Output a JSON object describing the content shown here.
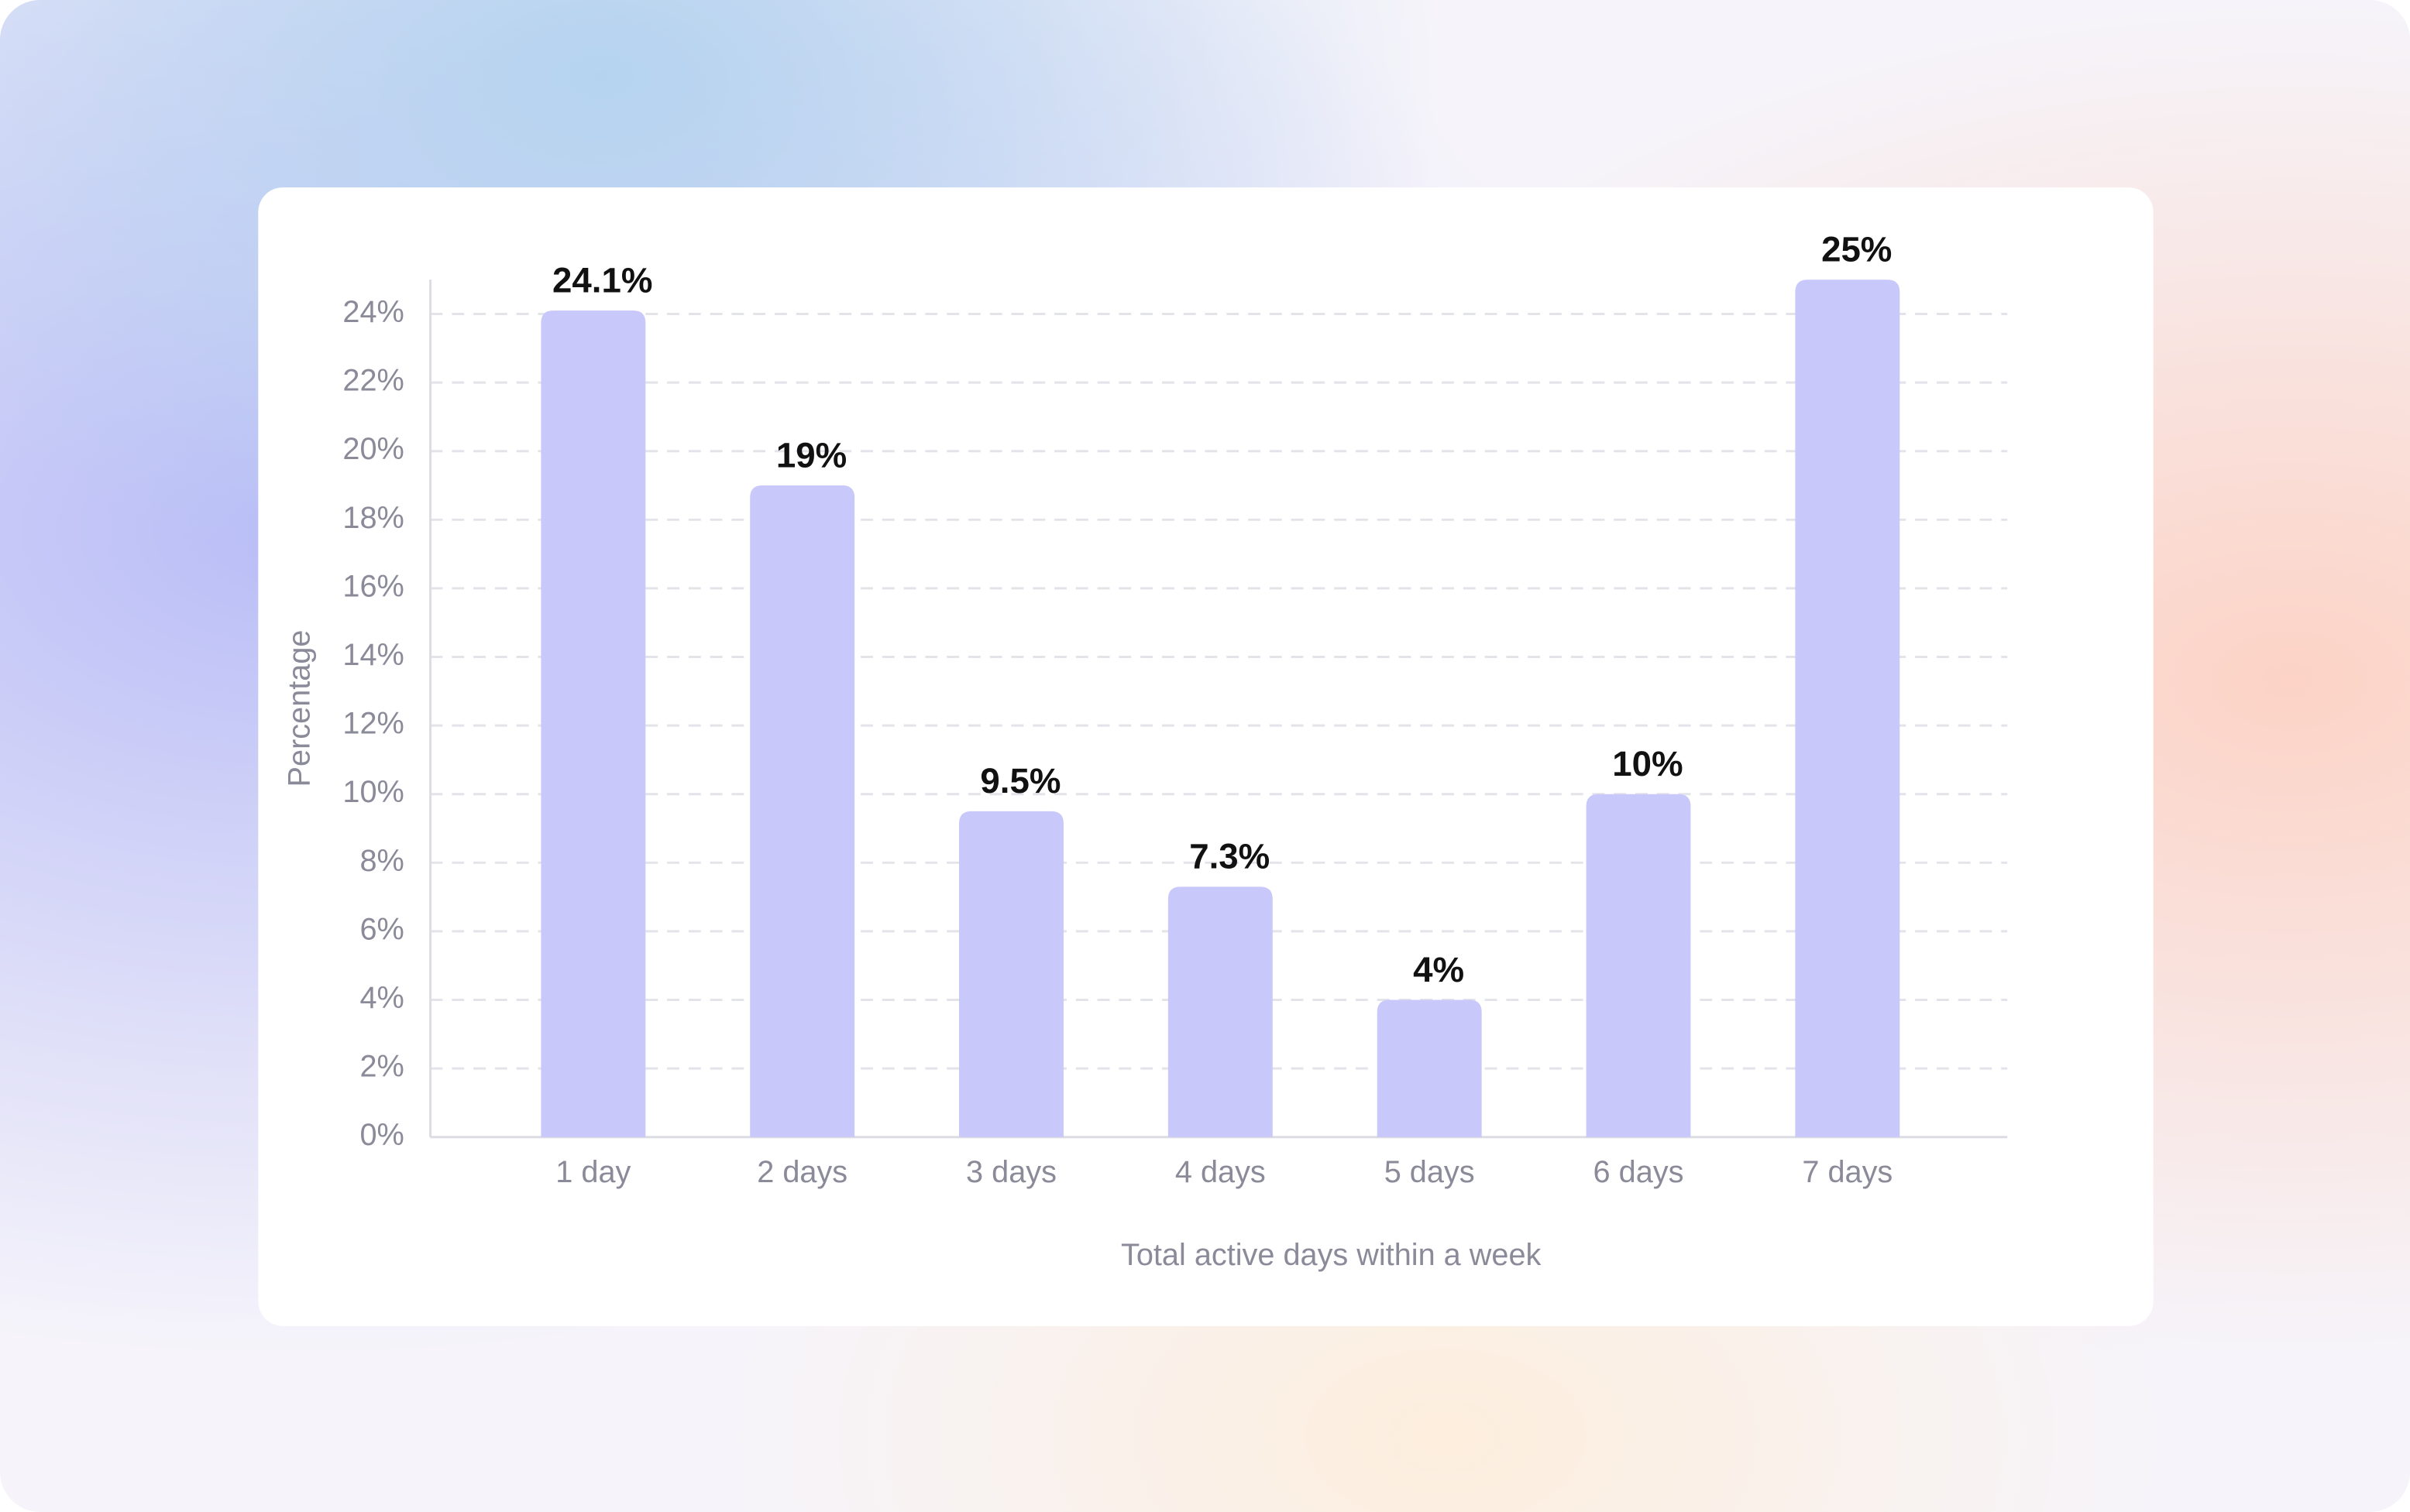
{
  "chart_data": {
    "type": "bar",
    "x_label": "Total active days within a week",
    "y_label": "Percentage",
    "categories": [
      "1 day",
      "2 days",
      "3 days",
      "4 days",
      "5 days",
      "6 days",
      "7 days"
    ],
    "values": [
      24.1,
      19,
      9.5,
      7.3,
      4,
      10,
      25
    ],
    "value_labels": [
      "24.1%",
      "19%",
      "9.5%",
      "7.3%",
      "4%",
      "10%",
      "25%"
    ],
    "color": "#c8c8fa",
    "ylim": [
      0,
      25
    ],
    "yticks": [
      {
        "value": 0,
        "label": "0%"
      },
      {
        "value": 2,
        "label": "2%"
      },
      {
        "value": 4,
        "label": "4%"
      },
      {
        "value": 6,
        "label": "6%"
      },
      {
        "value": 8,
        "label": "8%"
      },
      {
        "value": 10,
        "label": "10%"
      },
      {
        "value": 12,
        "label": "12%"
      },
      {
        "value": 14,
        "label": "14%"
      },
      {
        "value": 16,
        "label": "16%"
      },
      {
        "value": 18,
        "label": "18%"
      },
      {
        "value": 20,
        "label": "20%"
      },
      {
        "value": 22,
        "label": "22%"
      },
      {
        "value": 24,
        "label": "24%"
      }
    ],
    "grid": true
  }
}
